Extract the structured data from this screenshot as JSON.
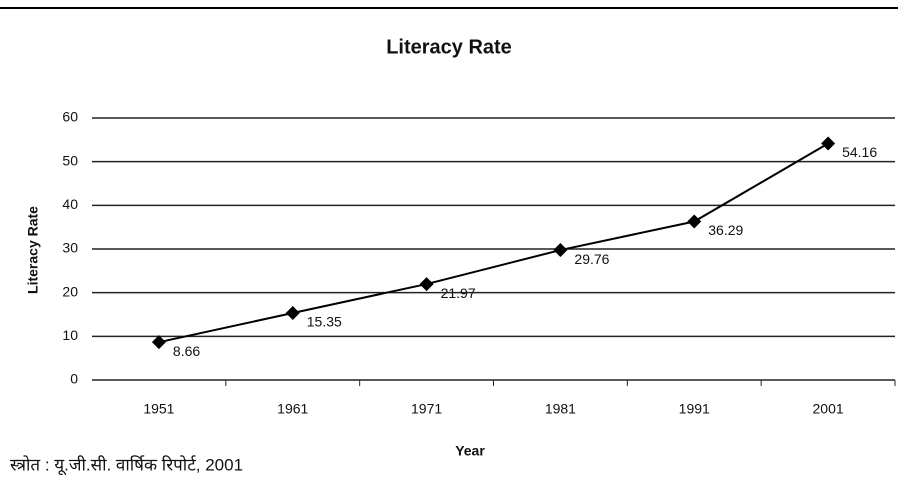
{
  "chart_data": {
    "type": "line",
    "title": "Literacy Rate",
    "x_label": "Year",
    "y_label": "Literacy Rate",
    "categories": [
      "1951",
      "1961",
      "1971",
      "1981",
      "1991",
      "2001"
    ],
    "values": [
      8.66,
      15.35,
      21.97,
      29.76,
      36.29,
      54.16
    ],
    "color": "#000000",
    "ylim": [
      0,
      60
    ],
    "yticks": [
      0,
      10,
      20,
      30,
      40,
      50,
      60
    ],
    "grid": true
  },
  "source": "स्त्रोत : यू.जी.सी. वार्षिक रिपोर्ट, 2001"
}
